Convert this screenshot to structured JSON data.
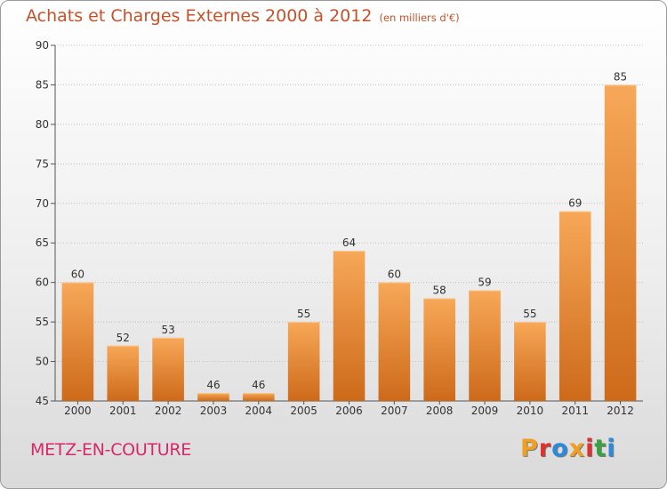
{
  "header": {
    "title": "Achats et Charges Externes 2000 à 2012",
    "unit": "(en milliers d'€)"
  },
  "footer": {
    "commune": "METZ-EN-COUTURE",
    "brand": "Proxiti",
    "brand_colors": [
      "#f0a020",
      "#e03030",
      "#2c8ad8",
      "#f0a020",
      "#e03030",
      "#3aa040",
      "#2c8ad8"
    ]
  },
  "colors": {
    "bar_light": "#f7a858",
    "bar_dark": "#cd6a1a",
    "title": "#c8512a",
    "commune": "#d8286a",
    "grid": "#bfbfbf"
  },
  "chart_data": {
    "type": "bar",
    "title": "Achats et Charges Externes 2000 à 2012",
    "subtitle": "(en milliers d'€)",
    "categories": [
      "2000",
      "2001",
      "2002",
      "2003",
      "2004",
      "2005",
      "2006",
      "2007",
      "2008",
      "2009",
      "2010",
      "2011",
      "2012"
    ],
    "values": [
      60,
      52,
      53,
      46,
      46,
      55,
      64,
      60,
      58,
      59,
      55,
      69,
      85
    ],
    "yticks": [
      45,
      50,
      55,
      60,
      65,
      70,
      75,
      80,
      85,
      90
    ],
    "ylim": [
      45,
      90
    ],
    "grid": true,
    "data_labels": true
  }
}
